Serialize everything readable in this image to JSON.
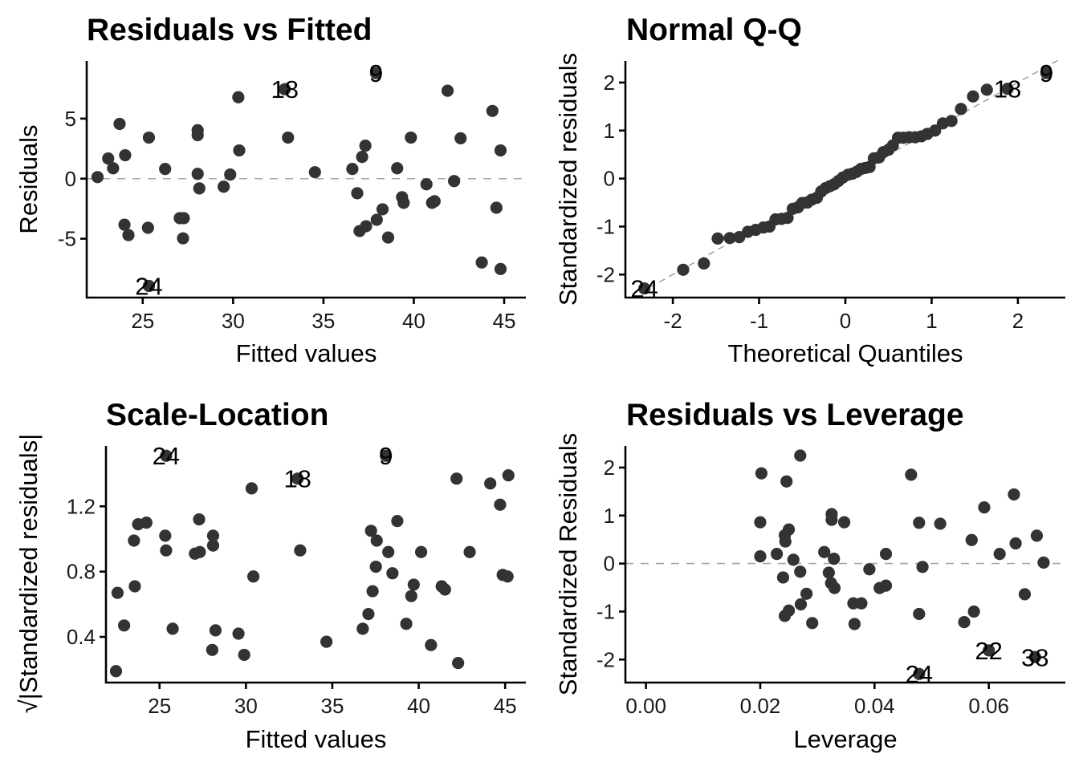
{
  "figure": {
    "point_color": "#333333",
    "reference_line_color": "#a6a6a6"
  },
  "chart_data": [
    {
      "id": "resid-fitted",
      "type": "scatter",
      "title": "Residuals vs Fitted",
      "xlabel": "Fitted values",
      "ylabel": "Residuals",
      "xlim": [
        21.9,
        46.2
      ],
      "ylim": [
        -9.9,
        9.8
      ],
      "xticks": [
        25,
        30,
        35,
        40,
        45
      ],
      "xtick_labels": [
        "25",
        "30",
        "35",
        "40",
        "45"
      ],
      "yticks": [
        -5,
        0,
        5
      ],
      "ytick_labels": [
        "-5",
        "0",
        "5"
      ],
      "hline": 0,
      "grid": false,
      "points": [
        {
          "x": 22.5,
          "y": 0.13
        },
        {
          "x": 23.09,
          "y": 1.68
        },
        {
          "x": 23.36,
          "y": 0.87
        },
        {
          "x": 23.72,
          "y": 4.56
        },
        {
          "x": 24.03,
          "y": 1.95
        },
        {
          "x": 23.99,
          "y": -3.83
        },
        {
          "x": 24.21,
          "y": -4.7
        },
        {
          "x": 25.34,
          "y": 3.42
        },
        {
          "x": 25.29,
          "y": -4.09
        },
        {
          "x": 25.34,
          "y": -8.93,
          "label": "24"
        },
        {
          "x": 26.24,
          "y": 0.81
        },
        {
          "x": 27.05,
          "y": -3.29
        },
        {
          "x": 27.27,
          "y": -3.29
        },
        {
          "x": 27.23,
          "y": -4.97
        },
        {
          "x": 28.04,
          "y": 4.03
        },
        {
          "x": 28.04,
          "y": 3.62
        },
        {
          "x": 28.04,
          "y": 0.4
        },
        {
          "x": 28.13,
          "y": -0.81
        },
        {
          "x": 29.48,
          "y": -0.67
        },
        {
          "x": 29.84,
          "y": 0.34
        },
        {
          "x": 30.29,
          "y": 6.78
        },
        {
          "x": 30.34,
          "y": 2.35
        },
        {
          "x": 32.86,
          "y": 7.45,
          "label": "18"
        },
        {
          "x": 33.04,
          "y": 3.42
        },
        {
          "x": 34.53,
          "y": 0.54
        },
        {
          "x": 36.6,
          "y": 0.81
        },
        {
          "x": 36.87,
          "y": -1.21
        },
        {
          "x": 37.14,
          "y": 1.81
        },
        {
          "x": 37.32,
          "y": 2.75
        },
        {
          "x": 37.0,
          "y": -4.36
        },
        {
          "x": 37.36,
          "y": -3.96
        },
        {
          "x": 37.95,
          "y": -3.42
        },
        {
          "x": 38.27,
          "y": -2.55
        },
        {
          "x": 37.91,
          "y": 8.79,
          "label": "9"
        },
        {
          "x": 38.58,
          "y": -4.9
        },
        {
          "x": 39.08,
          "y": 0.87
        },
        {
          "x": 39.35,
          "y": -1.54
        },
        {
          "x": 39.44,
          "y": -2.01
        },
        {
          "x": 39.84,
          "y": 3.42
        },
        {
          "x": 40.7,
          "y": -0.47
        },
        {
          "x": 41.01,
          "y": -2.01
        },
        {
          "x": 41.15,
          "y": -1.88
        },
        {
          "x": 41.87,
          "y": 7.32
        },
        {
          "x": 42.23,
          "y": -0.2
        },
        {
          "x": 42.59,
          "y": 3.36
        },
        {
          "x": 43.76,
          "y": -6.98
        },
        {
          "x": 44.35,
          "y": 5.64
        },
        {
          "x": 44.57,
          "y": -2.42
        },
        {
          "x": 44.8,
          "y": 2.35
        },
        {
          "x": 44.8,
          "y": -7.52
        }
      ]
    },
    {
      "id": "normal-qq",
      "type": "scatter",
      "title": "Normal Q-Q",
      "xlabel": "Theoretical Quantiles",
      "ylabel": "Standardized residuals",
      "xlim": [
        -2.55,
        2.55
      ],
      "ylim": [
        -2.48,
        2.45
      ],
      "xticks": [
        -2,
        -1,
        0,
        1,
        2
      ],
      "xtick_labels": [
        "-2",
        "-1",
        "0",
        "1",
        "2"
      ],
      "yticks": [
        -2,
        -1,
        0,
        1,
        2
      ],
      "ytick_labels": [
        "-2",
        "-1",
        "0",
        "1",
        "2"
      ],
      "reference_line": {
        "intercept": 0.0,
        "slope": 1.0
      },
      "grid": false,
      "points": [
        {
          "x": -2.33,
          "y": -2.29,
          "label": "24"
        },
        {
          "x": -1.88,
          "y": -1.9
        },
        {
          "x": -1.64,
          "y": -1.77
        },
        {
          "x": -1.48,
          "y": -1.25
        },
        {
          "x": -1.34,
          "y": -1.24
        },
        {
          "x": -1.23,
          "y": -1.22
        },
        {
          "x": -1.13,
          "y": -1.11
        },
        {
          "x": -1.04,
          "y": -1.07
        },
        {
          "x": -0.95,
          "y": -1.02
        },
        {
          "x": -0.88,
          "y": -1.0
        },
        {
          "x": -0.81,
          "y": -0.85
        },
        {
          "x": -0.74,
          "y": -0.84
        },
        {
          "x": -0.67,
          "y": -0.82
        },
        {
          "x": -0.61,
          "y": -0.63
        },
        {
          "x": -0.55,
          "y": -0.6
        },
        {
          "x": -0.5,
          "y": -0.51
        },
        {
          "x": -0.44,
          "y": -0.5
        },
        {
          "x": -0.39,
          "y": -0.44
        },
        {
          "x": -0.33,
          "y": -0.4
        },
        {
          "x": -0.28,
          "y": -0.27
        },
        {
          "x": -0.23,
          "y": -0.2
        },
        {
          "x": -0.18,
          "y": -0.16
        },
        {
          "x": -0.13,
          "y": -0.12
        },
        {
          "x": -0.08,
          "y": -0.05
        },
        {
          "x": -0.03,
          "y": 0.02
        },
        {
          "x": 0.03,
          "y": 0.08
        },
        {
          "x": 0.08,
          "y": 0.1
        },
        {
          "x": 0.13,
          "y": 0.14
        },
        {
          "x": 0.18,
          "y": 0.2
        },
        {
          "x": 0.23,
          "y": 0.22
        },
        {
          "x": 0.28,
          "y": 0.24
        },
        {
          "x": 0.33,
          "y": 0.42
        },
        {
          "x": 0.39,
          "y": 0.44
        },
        {
          "x": 0.44,
          "y": 0.55
        },
        {
          "x": 0.5,
          "y": 0.6
        },
        {
          "x": 0.55,
          "y": 0.69
        },
        {
          "x": 0.61,
          "y": 0.85
        },
        {
          "x": 0.67,
          "y": 0.85
        },
        {
          "x": 0.74,
          "y": 0.86
        },
        {
          "x": 0.81,
          "y": 0.86
        },
        {
          "x": 0.88,
          "y": 0.88
        },
        {
          "x": 0.95,
          "y": 0.93
        },
        {
          "x": 1.04,
          "y": 1.0
        },
        {
          "x": 1.13,
          "y": 1.15
        },
        {
          "x": 1.23,
          "y": 1.2
        },
        {
          "x": 1.34,
          "y": 1.45
        },
        {
          "x": 1.48,
          "y": 1.71
        },
        {
          "x": 1.64,
          "y": 1.85
        },
        {
          "x": 1.88,
          "y": 1.87,
          "label": "18"
        },
        {
          "x": 2.33,
          "y": 2.2,
          "label": "9"
        }
      ]
    },
    {
      "id": "scale-location",
      "type": "scatter",
      "title": "Scale-Location",
      "xlabel": "Fitted values",
      "ylabel": "√|Standardized residuals|",
      "xlim": [
        21.9,
        46.2
      ],
      "ylim": [
        0.12,
        1.57
      ],
      "xticks": [
        25,
        30,
        35,
        40,
        45
      ],
      "xtick_labels": [
        "25",
        "30",
        "35",
        "40",
        "45"
      ],
      "yticks": [
        0.4,
        0.8,
        1.2
      ],
      "ytick_labels": [
        "0.4",
        "0.8",
        "1.2"
      ],
      "grid": false,
      "points": [
        {
          "x": 25.38,
          "y": 1.51,
          "label": "24"
        },
        {
          "x": 30.33,
          "y": 1.31
        },
        {
          "x": 27.29,
          "y": 1.12
        },
        {
          "x": 23.76,
          "y": 1.09
        },
        {
          "x": 24.24,
          "y": 1.1
        },
        {
          "x": 25.33,
          "y": 1.02
        },
        {
          "x": 28.1,
          "y": 1.02
        },
        {
          "x": 23.52,
          "y": 0.99
        },
        {
          "x": 25.38,
          "y": 0.93
        },
        {
          "x": 28.1,
          "y": 0.96
        },
        {
          "x": 27.05,
          "y": 0.91
        },
        {
          "x": 27.33,
          "y": 0.92
        },
        {
          "x": 30.43,
          "y": 0.77
        },
        {
          "x": 23.57,
          "y": 0.71
        },
        {
          "x": 22.57,
          "y": 0.67
        },
        {
          "x": 22.95,
          "y": 0.47
        },
        {
          "x": 25.76,
          "y": 0.45
        },
        {
          "x": 28.24,
          "y": 0.44
        },
        {
          "x": 29.57,
          "y": 0.42
        },
        {
          "x": 28.05,
          "y": 0.32
        },
        {
          "x": 29.9,
          "y": 0.29
        },
        {
          "x": 22.48,
          "y": 0.19
        },
        {
          "x": 32.99,
          "y": 1.37,
          "label": "18"
        },
        {
          "x": 38.1,
          "y": 1.51,
          "label": "9"
        },
        {
          "x": 42.19,
          "y": 1.37
        },
        {
          "x": 44.14,
          "y": 1.34
        },
        {
          "x": 45.19,
          "y": 1.39
        },
        {
          "x": 44.71,
          "y": 1.21
        },
        {
          "x": 38.76,
          "y": 1.11
        },
        {
          "x": 37.24,
          "y": 1.05
        },
        {
          "x": 37.57,
          "y": 0.99
        },
        {
          "x": 33.14,
          "y": 0.93
        },
        {
          "x": 38.24,
          "y": 0.92
        },
        {
          "x": 40.14,
          "y": 0.92
        },
        {
          "x": 42.95,
          "y": 0.92
        },
        {
          "x": 37.52,
          "y": 0.83
        },
        {
          "x": 38.48,
          "y": 0.79
        },
        {
          "x": 44.86,
          "y": 0.78
        },
        {
          "x": 45.14,
          "y": 0.77
        },
        {
          "x": 39.71,
          "y": 0.72
        },
        {
          "x": 41.33,
          "y": 0.71
        },
        {
          "x": 41.52,
          "y": 0.69
        },
        {
          "x": 37.33,
          "y": 0.68
        },
        {
          "x": 39.57,
          "y": 0.65
        },
        {
          "x": 37.09,
          "y": 0.54
        },
        {
          "x": 39.28,
          "y": 0.48
        },
        {
          "x": 36.76,
          "y": 0.45
        },
        {
          "x": 34.66,
          "y": 0.37
        },
        {
          "x": 40.71,
          "y": 0.35
        },
        {
          "x": 42.28,
          "y": 0.24
        }
      ]
    },
    {
      "id": "resid-leverage",
      "type": "scatter",
      "title": "Residuals vs Leverage",
      "xlabel": "Leverage",
      "ylabel": "Standardized Residuals",
      "xlim": [
        -0.0036,
        0.0734
      ],
      "ylim": [
        -2.48,
        2.45
      ],
      "xticks": [
        0.0,
        0.02,
        0.04,
        0.06
      ],
      "xtick_labels": [
        "0.00",
        "0.02",
        "0.04",
        "0.06"
      ],
      "yticks": [
        -2,
        -1,
        0,
        1,
        2
      ],
      "ytick_labels": [
        "-2",
        "-1",
        "0",
        "1",
        "2"
      ],
      "hline": 0,
      "grid": false,
      "points": [
        {
          "x": 0.0202,
          "y": 1.88
        },
        {
          "x": 0.0246,
          "y": 1.71
        },
        {
          "x": 0.027,
          "y": 2.25
        },
        {
          "x": 0.02,
          "y": 0.86
        },
        {
          "x": 0.0325,
          "y": 1.03
        },
        {
          "x": 0.0325,
          "y": 0.91
        },
        {
          "x": 0.0347,
          "y": 0.86
        },
        {
          "x": 0.025,
          "y": 0.71
        },
        {
          "x": 0.0243,
          "y": 0.59
        },
        {
          "x": 0.0244,
          "y": 0.46
        },
        {
          "x": 0.02,
          "y": 0.15
        },
        {
          "x": 0.0229,
          "y": 0.2
        },
        {
          "x": 0.0258,
          "y": 0.08
        },
        {
          "x": 0.0312,
          "y": 0.24
        },
        {
          "x": 0.0329,
          "y": 0.1
        },
        {
          "x": 0.042,
          "y": 0.2
        },
        {
          "x": 0.027,
          "y": -0.17
        },
        {
          "x": 0.024,
          "y": -0.29
        },
        {
          "x": 0.032,
          "y": -0.19
        },
        {
          "x": 0.0324,
          "y": -0.41
        },
        {
          "x": 0.033,
          "y": -0.51
        },
        {
          "x": 0.0391,
          "y": -0.12
        },
        {
          "x": 0.0409,
          "y": -0.51
        },
        {
          "x": 0.042,
          "y": -0.46
        },
        {
          "x": 0.0281,
          "y": -0.63
        },
        {
          "x": 0.0271,
          "y": -0.85
        },
        {
          "x": 0.025,
          "y": -0.98
        },
        {
          "x": 0.0243,
          "y": -1.09
        },
        {
          "x": 0.0363,
          "y": -0.83
        },
        {
          "x": 0.0377,
          "y": -0.83
        },
        {
          "x": 0.0291,
          "y": -1.24
        },
        {
          "x": 0.0365,
          "y": -1.26
        },
        {
          "x": 0.0464,
          "y": 1.85
        },
        {
          "x": 0.0478,
          "y": 0.85
        },
        {
          "x": 0.0515,
          "y": 0.83
        },
        {
          "x": 0.0484,
          "y": -0.07
        },
        {
          "x": 0.0478,
          "y": -1.05
        },
        {
          "x": 0.0478,
          "y": -2.3,
          "label": "24"
        },
        {
          "x": 0.0557,
          "y": -1.22
        },
        {
          "x": 0.0574,
          "y": -1.0
        },
        {
          "x": 0.057,
          "y": 0.49
        },
        {
          "x": 0.0592,
          "y": 1.17
        },
        {
          "x": 0.06,
          "y": -1.81,
          "label": "22"
        },
        {
          "x": 0.0619,
          "y": 0.2
        },
        {
          "x": 0.0644,
          "y": 1.44
        },
        {
          "x": 0.0647,
          "y": 0.42
        },
        {
          "x": 0.0663,
          "y": -0.64
        },
        {
          "x": 0.0684,
          "y": 0.58
        },
        {
          "x": 0.0681,
          "y": -1.95,
          "label": "38"
        },
        {
          "x": 0.0696,
          "y": 0.02
        }
      ]
    }
  ]
}
